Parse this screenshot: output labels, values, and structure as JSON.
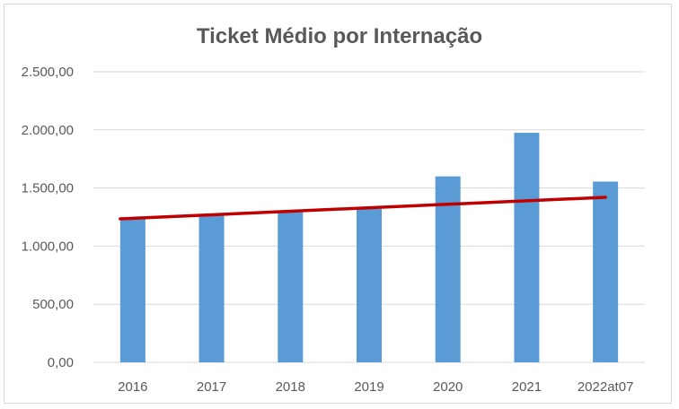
{
  "chart_data": {
    "type": "bar",
    "title": "Ticket Médio por Internação",
    "xlabel": "",
    "ylabel": "",
    "categories": [
      "2016",
      "2017",
      "2018",
      "2019",
      "2020",
      "2021",
      "2022at07"
    ],
    "series": [
      {
        "values": [
          1240,
          1270,
          1300,
          1320,
          1600,
          1975,
          1555
        ]
      }
    ],
    "trendline": {
      "start": 1235,
      "end": 1420
    },
    "ylim": [
      0,
      2500
    ],
    "yticks": [
      0,
      500,
      1000,
      1500,
      2000,
      2500
    ],
    "ytick_labels": [
      "0,00",
      "500,00",
      "1.000,00",
      "1.500,00",
      "2.000,00",
      "2.500,00"
    ],
    "grid": true,
    "legend": "none",
    "colors": {
      "bar": "#5b9bd5",
      "trend": "#c00000",
      "grid": "#d9d9d9",
      "text": "#595959"
    }
  }
}
